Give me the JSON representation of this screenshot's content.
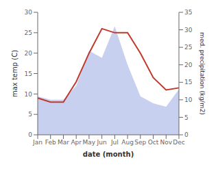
{
  "chart_data": {
    "type": "line",
    "categories": [
      "Jan",
      "Feb",
      "Mar",
      "Apr",
      "May",
      "Jun",
      "Jul",
      "Aug",
      "Sep",
      "Oct",
      "Nov",
      "Dec"
    ],
    "series": [
      {
        "type": "area",
        "axis": "y2",
        "color": "#c8d0f0",
        "values": [
          11,
          10,
          10,
          14,
          24,
          22,
          31,
          20,
          11,
          9,
          8,
          13
        ]
      },
      {
        "type": "line",
        "axis": "y",
        "color": "#c0392b",
        "values": [
          9.0,
          8.0,
          8.0,
          13.0,
          20.0,
          26.0,
          25.0,
          25.0,
          20.0,
          14.0,
          11.0,
          11.5
        ]
      }
    ],
    "xlabel": "date (month)",
    "ylabel": "max temp (C)",
    "y2label": "med. precipitation (kg/m2)",
    "ylim": [
      0,
      30
    ],
    "yticks": [
      0,
      5,
      10,
      15,
      20,
      25,
      30
    ],
    "y2lim": [
      0,
      35
    ],
    "y2ticks": [
      0,
      5,
      10,
      15,
      20,
      25,
      30,
      35
    ],
    "grid": false
  }
}
